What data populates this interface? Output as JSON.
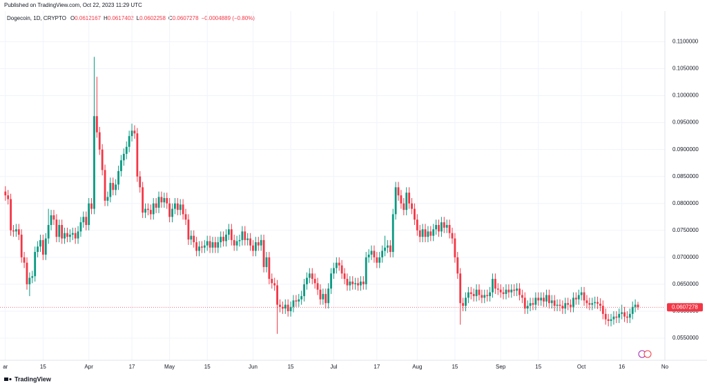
{
  "publish_note": "Published on TradingView.com, Oct 22, 2023 11:29 UTC",
  "footer": "TradingView",
  "chart_data": {
    "type": "candlestick",
    "title": "Dogecoin, 1D, CRYPTO",
    "ohlc_labels": [
      "O",
      "H",
      "L",
      "C"
    ],
    "change_label": "−0.0004889 (−0.80%)",
    "up_color": "#089981",
    "down_color": "#f23645",
    "grid": true,
    "xlim": [
      "02-27",
      "11-01"
    ],
    "xticks": [
      {
        "value": "03-01",
        "label": "ar"
      },
      {
        "value": "03-15",
        "label": "15"
      },
      {
        "value": "04-01",
        "label": "Apr"
      },
      {
        "value": "04-17",
        "label": "17"
      },
      {
        "value": "05-01",
        "label": "May"
      },
      {
        "value": "05-15",
        "label": "15"
      },
      {
        "value": "06-01",
        "label": "Jun"
      },
      {
        "value": "06-15",
        "label": "15"
      },
      {
        "value": "07-01",
        "label": "Jul"
      },
      {
        "value": "07-17",
        "label": "17"
      },
      {
        "value": "08-01",
        "label": "Aug"
      },
      {
        "value": "08-15",
        "label": "15"
      },
      {
        "value": "09-01",
        "label": "Sep"
      },
      {
        "value": "09-15",
        "label": "15"
      },
      {
        "value": "10-01",
        "label": "Oct"
      },
      {
        "value": "10-16",
        "label": "16"
      },
      {
        "value": "11-01",
        "label": "No"
      }
    ],
    "ylim": [
      0.0509,
      0.1157
    ],
    "yticks": [
      {
        "value": 0.055,
        "label": "0.0550000"
      },
      {
        "value": 0.06,
        "label": "0.0600000"
      },
      {
        "value": 0.065,
        "label": "0.0650000"
      },
      {
        "value": 0.07,
        "label": "0.0700000"
      },
      {
        "value": 0.075,
        "label": "0.0750000"
      },
      {
        "value": 0.08,
        "label": "0.0800000"
      },
      {
        "value": 0.085,
        "label": "0.0850000"
      },
      {
        "value": 0.09,
        "label": "0.0900000"
      },
      {
        "value": 0.095,
        "label": "0.0950000"
      },
      {
        "value": 0.1,
        "label": "0.1000000"
      },
      {
        "value": 0.105,
        "label": "0.1050000"
      },
      {
        "value": 0.11,
        "label": "0.1100000"
      }
    ],
    "x": [
      "03-01",
      "03-02",
      "03-03",
      "03-04",
      "03-05",
      "03-06",
      "03-07",
      "03-08",
      "03-09",
      "03-10",
      "03-11",
      "03-12",
      "03-13",
      "03-14",
      "03-15",
      "03-16",
      "03-17",
      "03-18",
      "03-19",
      "03-20",
      "03-21",
      "03-22",
      "03-23",
      "03-24",
      "03-25",
      "03-26",
      "03-27",
      "03-28",
      "03-29",
      "03-30",
      "03-31",
      "04-01",
      "04-02",
      "04-03",
      "04-04",
      "04-05",
      "04-06",
      "04-07",
      "04-08",
      "04-09",
      "04-10",
      "04-11",
      "04-12",
      "04-13",
      "04-14",
      "04-15",
      "04-16",
      "04-17",
      "04-18",
      "04-19",
      "04-20",
      "04-21",
      "04-22",
      "04-23",
      "04-24",
      "04-25",
      "04-26",
      "04-27",
      "04-28",
      "04-29",
      "04-30",
      "05-01",
      "05-02",
      "05-03",
      "05-04",
      "05-05",
      "05-06",
      "05-07",
      "05-08",
      "05-09",
      "05-10",
      "05-11",
      "05-12",
      "05-13",
      "05-14",
      "05-15",
      "05-16",
      "05-17",
      "05-18",
      "05-19",
      "05-20",
      "05-21",
      "05-22",
      "05-23",
      "05-24",
      "05-25",
      "05-26",
      "05-27",
      "05-28",
      "05-29",
      "05-30",
      "05-31",
      "06-01",
      "06-02",
      "06-03",
      "06-04",
      "06-05",
      "06-06",
      "06-07",
      "06-08",
      "06-09",
      "06-10",
      "06-11",
      "06-12",
      "06-13",
      "06-14",
      "06-15",
      "06-16",
      "06-17",
      "06-18",
      "06-19",
      "06-20",
      "06-21",
      "06-22",
      "06-23",
      "06-24",
      "06-25",
      "06-26",
      "06-27",
      "06-28",
      "06-29",
      "06-30",
      "07-01",
      "07-02",
      "07-03",
      "07-04",
      "07-05",
      "07-06",
      "07-07",
      "07-08",
      "07-09",
      "07-10",
      "07-11",
      "07-12",
      "07-13",
      "07-14",
      "07-15",
      "07-16",
      "07-17",
      "07-18",
      "07-19",
      "07-20",
      "07-21",
      "07-22",
      "07-23",
      "07-24",
      "07-25",
      "07-26",
      "07-27",
      "07-28",
      "07-29",
      "07-30",
      "07-31",
      "08-01",
      "08-02",
      "08-03",
      "08-04",
      "08-05",
      "08-06",
      "08-07",
      "08-08",
      "08-09",
      "08-10",
      "08-11",
      "08-12",
      "08-13",
      "08-14",
      "08-15",
      "08-16",
      "08-17",
      "08-18",
      "08-19",
      "08-20",
      "08-21",
      "08-22",
      "08-23",
      "08-24",
      "08-25",
      "08-26",
      "08-27",
      "08-28",
      "08-29",
      "08-30",
      "08-31",
      "09-01",
      "09-02",
      "09-03",
      "09-04",
      "09-05",
      "09-06",
      "09-07",
      "09-08",
      "09-09",
      "09-10",
      "09-11",
      "09-12",
      "09-13",
      "09-14",
      "09-15",
      "09-16",
      "09-17",
      "09-18",
      "09-19",
      "09-20",
      "09-21",
      "09-22",
      "09-23",
      "09-24",
      "09-25",
      "09-26",
      "09-27",
      "09-28",
      "09-29",
      "09-30",
      "10-01",
      "10-02",
      "10-03",
      "10-04",
      "10-05",
      "10-06",
      "10-07",
      "10-08",
      "10-09",
      "10-10",
      "10-11",
      "10-12",
      "10-13",
      "10-14",
      "10-15",
      "10-16",
      "10-17",
      "10-18",
      "10-19",
      "10-20",
      "10-21",
      "10-22"
    ],
    "open": [
      0.0822,
      0.0815,
      0.0808,
      0.075,
      0.0748,
      0.0752,
      0.0742,
      0.07,
      0.069,
      0.065,
      0.0662,
      0.0665,
      0.071,
      0.072,
      0.0732,
      0.0705,
      0.0735,
      0.076,
      0.0778,
      0.077,
      0.0738,
      0.076,
      0.0735,
      0.0745,
      0.0738,
      0.0742,
      0.0745,
      0.0735,
      0.0748,
      0.0765,
      0.0775,
      0.076,
      0.08,
      0.079,
      0.0962,
      0.0932,
      0.09,
      0.0862,
      0.0805,
      0.0812,
      0.0838,
      0.0825,
      0.0835,
      0.086,
      0.088,
      0.0892,
      0.0905,
      0.0925,
      0.0935,
      0.093,
      0.085,
      0.083,
      0.0783,
      0.079,
      0.0788,
      0.078,
      0.08,
      0.0792,
      0.0812,
      0.0802,
      0.081,
      0.08,
      0.0775,
      0.079,
      0.08,
      0.0788,
      0.0798,
      0.078,
      0.077,
      0.0733,
      0.074,
      0.0728,
      0.0712,
      0.072,
      0.0718,
      0.0722,
      0.073,
      0.0718,
      0.0728,
      0.0718,
      0.0728,
      0.0738,
      0.073,
      0.0742,
      0.0752,
      0.0732,
      0.0722,
      0.073,
      0.0732,
      0.0748,
      0.0732,
      0.0735,
      0.0722,
      0.0712,
      0.0728,
      0.0722,
      0.0732,
      0.0682,
      0.07,
      0.066,
      0.0652,
      0.0648,
      0.0612,
      0.0608,
      0.0605,
      0.0612,
      0.06,
      0.0608,
      0.062,
      0.0618,
      0.0622,
      0.0628,
      0.065,
      0.0662,
      0.067,
      0.066,
      0.0652,
      0.064,
      0.0622,
      0.0632,
      0.0615,
      0.0642,
      0.067,
      0.068,
      0.069,
      0.0685,
      0.067,
      0.066,
      0.0648,
      0.0655,
      0.065,
      0.0652,
      0.0648,
      0.0655,
      0.065,
      0.07,
      0.0705,
      0.0712,
      0.07,
      0.069,
      0.07,
      0.0712,
      0.0718,
      0.0722,
      0.071,
      0.078,
      0.083,
      0.0815,
      0.08,
      0.0788,
      0.082,
      0.08,
      0.079,
      0.077,
      0.075,
      0.0738,
      0.0752,
      0.0738,
      0.0748,
      0.074,
      0.0752,
      0.076,
      0.0748,
      0.0765,
      0.0755,
      0.076,
      0.0745,
      0.0735,
      0.07,
      0.067,
      0.0615,
      0.061,
      0.0625,
      0.0635,
      0.0632,
      0.0628,
      0.064,
      0.063,
      0.0625,
      0.063,
      0.0628,
      0.0635,
      0.066,
      0.0642,
      0.064,
      0.0635,
      0.0632,
      0.064,
      0.0635,
      0.064,
      0.0638,
      0.0642,
      0.063,
      0.0625,
      0.0605,
      0.061,
      0.0615,
      0.0612,
      0.0625,
      0.062,
      0.0625,
      0.0618,
      0.063,
      0.0615,
      0.062,
      0.061,
      0.0612,
      0.061,
      0.0605,
      0.0615,
      0.0612,
      0.0608,
      0.0625,
      0.0622,
      0.063,
      0.0635,
      0.062,
      0.0615,
      0.0612,
      0.0615,
      0.0617,
      0.0614,
      0.061,
      0.0595,
      0.0585,
      0.0582,
      0.0585,
      0.059,
      0.0588,
      0.0595,
      0.0598,
      0.059,
      0.0588,
      0.0595,
      0.0608,
      0.0612167
    ],
    "high": [
      0.0832,
      0.0825,
      0.0818,
      0.076,
      0.0762,
      0.0762,
      0.0752,
      0.071,
      0.07,
      0.0672,
      0.0675,
      0.072,
      0.073,
      0.0742,
      0.0742,
      0.0745,
      0.079,
      0.0788,
      0.0788,
      0.078,
      0.077,
      0.077,
      0.0755,
      0.0755,
      0.0752,
      0.0755,
      0.0755,
      0.0758,
      0.0775,
      0.0785,
      0.0785,
      0.081,
      0.081,
      0.1072,
      0.1035,
      0.0942,
      0.091,
      0.0872,
      0.0822,
      0.0848,
      0.0848,
      0.0845,
      0.087,
      0.089,
      0.0902,
      0.0915,
      0.0935,
      0.0948,
      0.0945,
      0.094,
      0.086,
      0.084,
      0.08,
      0.08,
      0.0798,
      0.081,
      0.081,
      0.0822,
      0.0822,
      0.082,
      0.082,
      0.081,
      0.08,
      0.081,
      0.081,
      0.0808,
      0.0808,
      0.079,
      0.078,
      0.075,
      0.075,
      0.0738,
      0.073,
      0.073,
      0.0732,
      0.074,
      0.074,
      0.0738,
      0.0738,
      0.0738,
      0.0748,
      0.0748,
      0.0752,
      0.0762,
      0.0762,
      0.0742,
      0.074,
      0.0742,
      0.0758,
      0.0758,
      0.0745,
      0.0745,
      0.0732,
      0.0738,
      0.0738,
      0.0742,
      0.0742,
      0.071,
      0.071,
      0.067,
      0.0662,
      0.0658,
      0.0622,
      0.0618,
      0.0622,
      0.0622,
      0.0618,
      0.063,
      0.063,
      0.0632,
      0.0638,
      0.066,
      0.0672,
      0.068,
      0.068,
      0.067,
      0.0662,
      0.065,
      0.0642,
      0.0642,
      0.0652,
      0.068,
      0.069,
      0.07,
      0.07,
      0.0695,
      0.068,
      0.067,
      0.0665,
      0.0665,
      0.0662,
      0.0662,
      0.0665,
      0.0665,
      0.071,
      0.0715,
      0.0722,
      0.0722,
      0.071,
      0.071,
      0.0722,
      0.074,
      0.0732,
      0.0732,
      0.079,
      0.084,
      0.084,
      0.0825,
      0.081,
      0.083,
      0.083,
      0.081,
      0.08,
      0.078,
      0.076,
      0.0762,
      0.0762,
      0.0758,
      0.0758,
      0.0762,
      0.077,
      0.077,
      0.0775,
      0.0775,
      0.077,
      0.077,
      0.0755,
      0.0745,
      0.071,
      0.068,
      0.0625,
      0.0635,
      0.0645,
      0.0645,
      0.0642,
      0.065,
      0.065,
      0.064,
      0.064,
      0.064,
      0.0645,
      0.067,
      0.067,
      0.0652,
      0.065,
      0.0645,
      0.065,
      0.065,
      0.065,
      0.065,
      0.0652,
      0.0652,
      0.064,
      0.0635,
      0.062,
      0.0625,
      0.0625,
      0.0635,
      0.0635,
      0.0635,
      0.0635,
      0.064,
      0.064,
      0.063,
      0.063,
      0.0622,
      0.0622,
      0.062,
      0.0625,
      0.0625,
      0.0622,
      0.0635,
      0.0635,
      0.064,
      0.0645,
      0.0645,
      0.063,
      0.0625,
      0.0625,
      0.0627,
      0.0627,
      0.0624,
      0.062,
      0.0605,
      0.0595,
      0.0595,
      0.06,
      0.06,
      0.0605,
      0.0612,
      0.0608,
      0.06,
      0.0605,
      0.0618,
      0.0622,
      0.0617402
    ],
    "low": [
      0.0805,
      0.0798,
      0.074,
      0.0738,
      0.0738,
      0.0732,
      0.069,
      0.068,
      0.064,
      0.0628,
      0.0652,
      0.0655,
      0.07,
      0.071,
      0.0695,
      0.0695,
      0.0725,
      0.075,
      0.076,
      0.0728,
      0.0728,
      0.0725,
      0.0725,
      0.0728,
      0.0728,
      0.0732,
      0.0725,
      0.0725,
      0.0738,
      0.0755,
      0.075,
      0.075,
      0.078,
      0.078,
      0.0922,
      0.089,
      0.0852,
      0.0795,
      0.0795,
      0.0802,
      0.0815,
      0.0815,
      0.0825,
      0.085,
      0.087,
      0.0882,
      0.0895,
      0.0915,
      0.092,
      0.084,
      0.082,
      0.0773,
      0.0773,
      0.0778,
      0.077,
      0.077,
      0.0782,
      0.0782,
      0.0792,
      0.0792,
      0.079,
      0.0765,
      0.0765,
      0.078,
      0.0778,
      0.0778,
      0.077,
      0.076,
      0.0723,
      0.0723,
      0.0718,
      0.0702,
      0.0702,
      0.0708,
      0.0708,
      0.0712,
      0.0708,
      0.0708,
      0.0708,
      0.0708,
      0.0718,
      0.072,
      0.072,
      0.0732,
      0.0722,
      0.0712,
      0.0712,
      0.072,
      0.0722,
      0.0722,
      0.0722,
      0.0712,
      0.0702,
      0.0702,
      0.0712,
      0.0712,
      0.0672,
      0.0672,
      0.065,
      0.0642,
      0.0638,
      0.0558,
      0.0598,
      0.0595,
      0.0595,
      0.059,
      0.059,
      0.0598,
      0.0608,
      0.0608,
      0.0612,
      0.0618,
      0.064,
      0.0652,
      0.065,
      0.0642,
      0.063,
      0.0612,
      0.0612,
      0.0605,
      0.0605,
      0.0632,
      0.066,
      0.067,
      0.0675,
      0.066,
      0.065,
      0.0638,
      0.0638,
      0.064,
      0.064,
      0.0638,
      0.0638,
      0.064,
      0.064,
      0.069,
      0.0695,
      0.069,
      0.068,
      0.068,
      0.069,
      0.0702,
      0.0708,
      0.07,
      0.07,
      0.077,
      0.0805,
      0.079,
      0.0778,
      0.0778,
      0.079,
      0.078,
      0.076,
      0.074,
      0.0728,
      0.0728,
      0.0728,
      0.0728,
      0.073,
      0.073,
      0.0742,
      0.0738,
      0.0738,
      0.0745,
      0.0745,
      0.0735,
      0.0725,
      0.069,
      0.066,
      0.0575,
      0.06,
      0.06,
      0.0615,
      0.0622,
      0.0618,
      0.0618,
      0.062,
      0.0615,
      0.0615,
      0.0618,
      0.0618,
      0.0625,
      0.0632,
      0.063,
      0.0625,
      0.0622,
      0.0622,
      0.0625,
      0.0625,
      0.0628,
      0.0628,
      0.062,
      0.0615,
      0.0595,
      0.0595,
      0.06,
      0.0602,
      0.0602,
      0.061,
      0.061,
      0.0608,
      0.0608,
      0.0605,
      0.0605,
      0.06,
      0.06,
      0.06,
      0.0595,
      0.0595,
      0.0602,
      0.0598,
      0.0598,
      0.0612,
      0.0612,
      0.062,
      0.061,
      0.0605,
      0.0602,
      0.0602,
      0.0605,
      0.0604,
      0.06,
      0.0585,
      0.0575,
      0.0572,
      0.0572,
      0.0575,
      0.0578,
      0.0578,
      0.0585,
      0.058,
      0.0578,
      0.0578,
      0.0585,
      0.0598,
      0.0602258
    ],
    "close": [
      0.0815,
      0.0808,
      0.075,
      0.0748,
      0.0752,
      0.0742,
      0.07,
      0.069,
      0.065,
      0.0662,
      0.0665,
      0.071,
      0.072,
      0.0732,
      0.0705,
      0.0735,
      0.076,
      0.0778,
      0.077,
      0.0738,
      0.076,
      0.0735,
      0.0745,
      0.0738,
      0.0742,
      0.0745,
      0.0735,
      0.0748,
      0.0765,
      0.0775,
      0.076,
      0.08,
      0.079,
      0.0962,
      0.0932,
      0.09,
      0.0862,
      0.0805,
      0.0812,
      0.0838,
      0.0825,
      0.0835,
      0.086,
      0.088,
      0.0892,
      0.0905,
      0.0925,
      0.0935,
      0.093,
      0.085,
      0.083,
      0.0783,
      0.079,
      0.0788,
      0.078,
      0.08,
      0.0792,
      0.0812,
      0.0802,
      0.081,
      0.08,
      0.0775,
      0.079,
      0.08,
      0.0788,
      0.0798,
      0.078,
      0.077,
      0.0733,
      0.074,
      0.0728,
      0.0712,
      0.072,
      0.0718,
      0.0722,
      0.073,
      0.0718,
      0.0728,
      0.0718,
      0.0728,
      0.0738,
      0.073,
      0.0742,
      0.0752,
      0.0732,
      0.0722,
      0.073,
      0.0732,
      0.0748,
      0.0732,
      0.0735,
      0.0722,
      0.0712,
      0.0728,
      0.0722,
      0.0732,
      0.0682,
      0.07,
      0.066,
      0.0652,
      0.0648,
      0.0612,
      0.0608,
      0.0605,
      0.0612,
      0.06,
      0.0608,
      0.062,
      0.0618,
      0.0622,
      0.0628,
      0.065,
      0.0662,
      0.067,
      0.066,
      0.0652,
      0.064,
      0.0622,
      0.0632,
      0.0615,
      0.0642,
      0.067,
      0.068,
      0.069,
      0.0685,
      0.067,
      0.066,
      0.0648,
      0.0655,
      0.065,
      0.0652,
      0.0648,
      0.0655,
      0.065,
      0.07,
      0.0705,
      0.0712,
      0.07,
      0.069,
      0.07,
      0.0712,
      0.0718,
      0.0722,
      0.071,
      0.078,
      0.083,
      0.0815,
      0.08,
      0.0788,
      0.082,
      0.08,
      0.079,
      0.077,
      0.075,
      0.0738,
      0.0752,
      0.0738,
      0.0748,
      0.074,
      0.0752,
      0.076,
      0.0748,
      0.0765,
      0.0755,
      0.076,
      0.0745,
      0.0735,
      0.07,
      0.067,
      0.0615,
      0.061,
      0.0625,
      0.0635,
      0.0632,
      0.0628,
      0.064,
      0.063,
      0.0625,
      0.063,
      0.0628,
      0.0635,
      0.066,
      0.0642,
      0.064,
      0.0635,
      0.0632,
      0.064,
      0.0635,
      0.064,
      0.0638,
      0.0642,
      0.063,
      0.0625,
      0.0605,
      0.061,
      0.0615,
      0.0612,
      0.0625,
      0.062,
      0.0625,
      0.0618,
      0.063,
      0.0615,
      0.062,
      0.061,
      0.0612,
      0.061,
      0.0605,
      0.0615,
      0.0612,
      0.0608,
      0.0625,
      0.0622,
      0.063,
      0.0635,
      0.062,
      0.0615,
      0.0612,
      0.0615,
      0.0617,
      0.0614,
      0.061,
      0.0595,
      0.0585,
      0.0582,
      0.0585,
      0.059,
      0.0588,
      0.0595,
      0.0598,
      0.059,
      0.0588,
      0.0595,
      0.0608,
      0.0612,
      0.0607278
    ]
  }
}
